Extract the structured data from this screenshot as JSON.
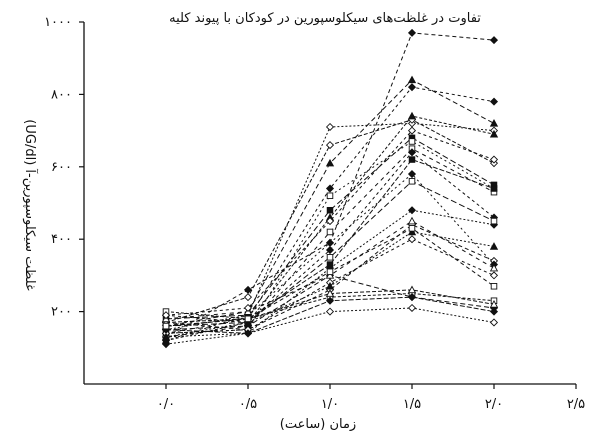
{
  "chart_data": {
    "type": "line",
    "title": "تفاوت در غلظت‌های سیکلوسپورین در کودکان با پیوند کلیه",
    "xlabel": "زمان (ساعت)",
    "ylabel": "غلظت سیکلوسپورین-آ (UG/dl)",
    "x": [
      0,
      0.5,
      1,
      1.5,
      2
    ],
    "xlim": [
      -0.5,
      2.5
    ],
    "ylim": [
      0,
      1000
    ],
    "xticks": [
      0,
      0.5,
      1,
      1.5,
      2,
      2.5
    ],
    "xtick_labels": [
      "۰/۰",
      "۰/۵",
      "۱/۰",
      "۱/۵",
      "۲/۰",
      "۲/۵"
    ],
    "yticks": [
      200,
      400,
      600,
      800,
      1000
    ],
    "ytick_labels": [
      "۲۰۰",
      "۴۰۰",
      "۶۰۰",
      "۸۰۰",
      "۱۰۰۰"
    ],
    "grid": false,
    "legend": false,
    "series": [
      {
        "values": [
          130,
          260,
          390,
          970,
          950
        ],
        "marker": "diamond-filled",
        "dash": "4,3"
      },
      {
        "values": [
          140,
          180,
          540,
          820,
          780
        ],
        "marker": "diamond-filled",
        "dash": "3,3"
      },
      {
        "values": [
          160,
          200,
          610,
          840,
          720
        ],
        "marker": "triangle-filled",
        "dash": "5,3"
      },
      {
        "values": [
          150,
          190,
          710,
          720,
          700
        ],
        "marker": "diamond-open",
        "dash": "2,2"
      },
      {
        "values": [
          170,
          240,
          660,
          730,
          610
        ],
        "marker": "diamond-open",
        "dash": "4,2"
      },
      {
        "values": [
          120,
          170,
          460,
          740,
          690
        ],
        "marker": "triangle-filled",
        "dash": "3,2"
      },
      {
        "values": [
          180,
          190,
          480,
          680,
          550
        ],
        "marker": "square-filled",
        "dash": "6,3"
      },
      {
        "values": [
          140,
          150,
          520,
          670,
          540
        ],
        "marker": "square-open",
        "dash": "2,3"
      },
      {
        "values": [
          130,
          160,
          420,
          650,
          530
        ],
        "marker": "square-open",
        "dash": "4,4"
      },
      {
        "values": [
          160,
          180,
          330,
          620,
          540
        ],
        "marker": "square-filled",
        "dash": "5,2"
      },
      {
        "values": [
          190,
          170,
          370,
          640,
          460
        ],
        "marker": "diamond-filled",
        "dash": "3,3"
      },
      {
        "values": [
          110,
          140,
          320,
          480,
          440
        ],
        "marker": "diamond-filled",
        "dash": "2,2"
      },
      {
        "values": [
          170,
          150,
          260,
          440,
          340
        ],
        "marker": "diamond-open",
        "dash": "4,3"
      },
      {
        "values": [
          200,
          180,
          240,
          250,
          230
        ],
        "marker": "square-open",
        "dash": "3,2"
      },
      {
        "values": [
          150,
          160,
          300,
          240,
          210
        ],
        "marker": "diamond-filled",
        "dash": "5,3"
      },
      {
        "values": [
          130,
          140,
          200,
          210,
          170
        ],
        "marker": "diamond-open",
        "dash": "2,2"
      },
      {
        "values": [
          170,
          180,
          250,
          260,
          220
        ],
        "marker": "triangle-open",
        "dash": "4,2"
      },
      {
        "values": [
          140,
          150,
          280,
          400,
          300
        ],
        "marker": "diamond-open",
        "dash": "3,3"
      },
      {
        "values": [
          160,
          170,
          350,
          560,
          450
        ],
        "marker": "square-open",
        "dash": "6,3"
      },
      {
        "values": [
          120,
          190,
          390,
          580,
          330
        ],
        "marker": "diamond-filled",
        "dash": "2,3"
      },
      {
        "values": [
          180,
          200,
          300,
          450,
          320
        ],
        "marker": "triangle-open",
        "dash": "4,4"
      },
      {
        "values": [
          150,
          140,
          230,
          240,
          200
        ],
        "marker": "diamond-filled",
        "dash": "5,2"
      },
      {
        "values": [
          190,
          210,
          450,
          700,
          620
        ],
        "marker": "diamond-open",
        "dash": "3,3"
      },
      {
        "values": [
          130,
          170,
          270,
          420,
          380
        ],
        "marker": "triangle-filled",
        "dash": "2,2"
      },
      {
        "values": [
          160,
          180,
          310,
          430,
          270
        ],
        "marker": "square-open",
        "dash": "4,3"
      }
    ]
  }
}
